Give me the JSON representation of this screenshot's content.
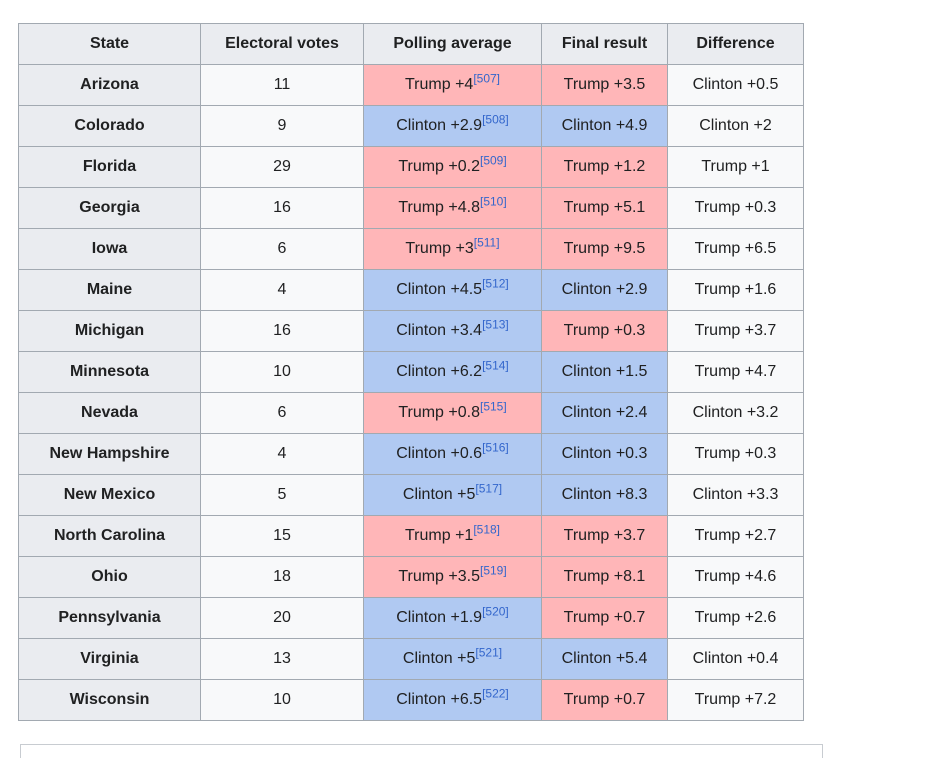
{
  "colors": {
    "trump_pink": "#ffb6b8",
    "clinton_blue": "#b0c9f2",
    "header_gray": "#eaecf0",
    "plain_cell": "#f8f9fa",
    "border": "#a2a9b1",
    "citation_link": "#3366cc",
    "text": "#202122"
  },
  "table": {
    "headers": [
      "State",
      "Electoral votes",
      "Polling average",
      "Final result",
      "Difference"
    ],
    "rows": [
      {
        "state": "Arizona",
        "ev": "11",
        "poll": "Trump +4",
        "cite": "[507]",
        "poll_leader": "trump",
        "final": "Trump +3.5",
        "final_leader": "trump",
        "diff": "Clinton +0.5"
      },
      {
        "state": "Colorado",
        "ev": "9",
        "poll": "Clinton +2.9",
        "cite": "[508]",
        "poll_leader": "clinton",
        "final": "Clinton +4.9",
        "final_leader": "clinton",
        "diff": "Clinton +2"
      },
      {
        "state": "Florida",
        "ev": "29",
        "poll": "Trump +0.2",
        "cite": "[509]",
        "poll_leader": "trump",
        "final": "Trump +1.2",
        "final_leader": "trump",
        "diff": "Trump +1"
      },
      {
        "state": "Georgia",
        "ev": "16",
        "poll": "Trump +4.8",
        "cite": "[510]",
        "poll_leader": "trump",
        "final": "Trump +5.1",
        "final_leader": "trump",
        "diff": "Trump +0.3"
      },
      {
        "state": "Iowa",
        "ev": "6",
        "poll": "Trump +3",
        "cite": "[511]",
        "poll_leader": "trump",
        "final": "Trump +9.5",
        "final_leader": "trump",
        "diff": "Trump +6.5"
      },
      {
        "state": "Maine",
        "ev": "4",
        "poll": "Clinton +4.5",
        "cite": "[512]",
        "poll_leader": "clinton",
        "final": "Clinton +2.9",
        "final_leader": "clinton",
        "diff": "Trump +1.6"
      },
      {
        "state": "Michigan",
        "ev": "16",
        "poll": "Clinton +3.4",
        "cite": "[513]",
        "poll_leader": "clinton",
        "final": "Trump +0.3",
        "final_leader": "trump",
        "diff": "Trump +3.7"
      },
      {
        "state": "Minnesota",
        "ev": "10",
        "poll": "Clinton +6.2",
        "cite": "[514]",
        "poll_leader": "clinton",
        "final": "Clinton +1.5",
        "final_leader": "clinton",
        "diff": "Trump +4.7"
      },
      {
        "state": "Nevada",
        "ev": "6",
        "poll": "Trump +0.8",
        "cite": "[515]",
        "poll_leader": "trump",
        "final": "Clinton +2.4",
        "final_leader": "clinton",
        "diff": "Clinton +3.2"
      },
      {
        "state": "New Hampshire",
        "ev": "4",
        "poll": "Clinton +0.6",
        "cite": "[516]",
        "poll_leader": "clinton",
        "final": "Clinton +0.3",
        "final_leader": "clinton",
        "diff": "Trump +0.3"
      },
      {
        "state": "New Mexico",
        "ev": "5",
        "poll": "Clinton +5",
        "cite": "[517]",
        "poll_leader": "clinton",
        "final": "Clinton +8.3",
        "final_leader": "clinton",
        "diff": "Clinton +3.3"
      },
      {
        "state": "North Carolina",
        "ev": "15",
        "poll": "Trump +1",
        "cite": "[518]",
        "poll_leader": "trump",
        "final": "Trump +3.7",
        "final_leader": "trump",
        "diff": "Trump +2.7"
      },
      {
        "state": "Ohio",
        "ev": "18",
        "poll": "Trump +3.5",
        "cite": "[519]",
        "poll_leader": "trump",
        "final": "Trump +8.1",
        "final_leader": "trump",
        "diff": "Trump +4.6"
      },
      {
        "state": "Pennsylvania",
        "ev": "20",
        "poll": "Clinton +1.9",
        "cite": "[520]",
        "poll_leader": "clinton",
        "final": "Trump +0.7",
        "final_leader": "trump",
        "diff": "Trump +2.6"
      },
      {
        "state": "Virginia",
        "ev": "13",
        "poll": "Clinton +5",
        "cite": "[521]",
        "poll_leader": "clinton",
        "final": "Clinton +5.4",
        "final_leader": "clinton",
        "diff": "Clinton +0.4"
      },
      {
        "state": "Wisconsin",
        "ev": "10",
        "poll": "Clinton +6.5",
        "cite": "[522]",
        "poll_leader": "clinton",
        "final": "Trump +0.7",
        "final_leader": "trump",
        "diff": "Trump +7.2"
      }
    ]
  }
}
